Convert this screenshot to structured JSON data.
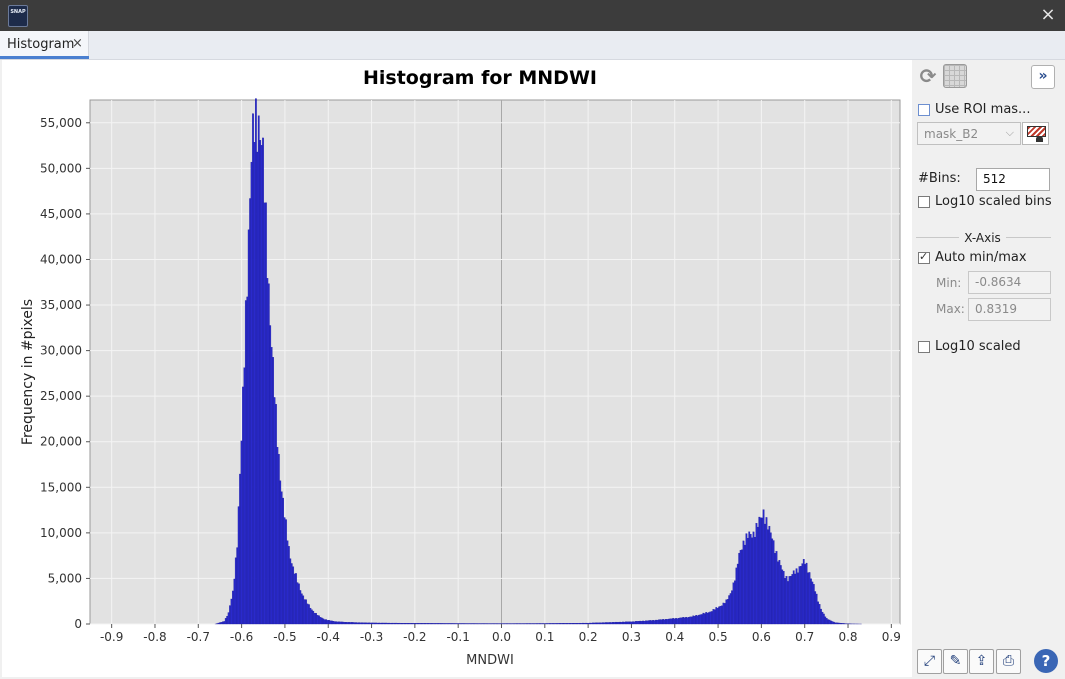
{
  "window": {
    "app_icon_text": "SNAP",
    "close_label": "×"
  },
  "tabs": [
    {
      "label": "Histogram",
      "close_label": "×",
      "active": true
    }
  ],
  "panel": {
    "use_roi_mask_label": "Use ROI mas...",
    "use_roi_mask_checked": false,
    "mask_select_value": "mask_B2",
    "bins_label": "#Bins:",
    "bins_value": "512",
    "log10_bins_label": "Log10 scaled bins",
    "log10_bins_checked": false,
    "x_axis_title": "X-Axis",
    "auto_minmax_label": "Auto min/max",
    "auto_minmax_checked": true,
    "min_label": "Min:",
    "min_value": "-0.8634",
    "max_label": "Max:",
    "max_value": "0.8319",
    "log10_scaled_label": "Log10 scaled",
    "log10_scaled_checked": false,
    "expand_label": "»",
    "help_label": "?",
    "icons": {
      "refresh": "refresh-icon",
      "grid": "grid-toggle-icon",
      "zoom_all": "zoom-all-icon",
      "edit": "edit-icon",
      "export": "export-icon",
      "print": "print-icon"
    }
  },
  "colors": {
    "bar": "#2a2acc",
    "plot_bg": "#e2e2e2",
    "accent": "#4a7fd0"
  },
  "chart_data": {
    "type": "bar",
    "title": "Histogram for MNDWI",
    "xlabel": "MNDWI",
    "ylabel": "Frequency in #pixels",
    "xlim": [
      -0.95,
      0.92
    ],
    "ylim": [
      0,
      57500
    ],
    "grid": true,
    "legend": "none",
    "xticks": [
      "-0.9",
      "-0.8",
      "-0.7",
      "-0.6",
      "-0.5",
      "-0.4",
      "-0.3",
      "-0.2",
      "-0.1",
      "0.0",
      "0.1",
      "0.2",
      "0.3",
      "0.4",
      "0.5",
      "0.6",
      "0.7",
      "0.8",
      "0.9"
    ],
    "yticks": [
      "0",
      "5,000",
      "10,000",
      "15,000",
      "20,000",
      "25,000",
      "30,000",
      "35,000",
      "40,000",
      "45,000",
      "50,000",
      "55,000"
    ],
    "profile_x": [
      -0.8634,
      -0.66,
      -0.64,
      -0.63,
      -0.62,
      -0.61,
      -0.6,
      -0.59,
      -0.58,
      -0.575,
      -0.57,
      -0.565,
      -0.56,
      -0.555,
      -0.55,
      -0.545,
      -0.54,
      -0.535,
      -0.53,
      -0.52,
      -0.51,
      -0.5,
      -0.49,
      -0.48,
      -0.47,
      -0.46,
      -0.45,
      -0.44,
      -0.43,
      -0.42,
      -0.41,
      -0.4,
      -0.38,
      -0.35,
      -0.3,
      -0.2,
      -0.1,
      0.0,
      0.1,
      0.2,
      0.3,
      0.35,
      0.4,
      0.44,
      0.48,
      0.5,
      0.52,
      0.53,
      0.54,
      0.55,
      0.56,
      0.57,
      0.58,
      0.59,
      0.6,
      0.605,
      0.61,
      0.62,
      0.63,
      0.64,
      0.65,
      0.66,
      0.67,
      0.68,
      0.69,
      0.7,
      0.71,
      0.72,
      0.73,
      0.74,
      0.75,
      0.77,
      0.8,
      0.8319
    ],
    "profile_y": [
      0,
      0,
      300,
      1200,
      3500,
      9000,
      20000,
      35000,
      47000,
      52000,
      55000,
      56000,
      55500,
      53000,
      50000,
      45000,
      40000,
      35000,
      30000,
      22000,
      16000,
      11500,
      8000,
      6000,
      4500,
      3300,
      2400,
      1700,
      1200,
      800,
      550,
      400,
      250,
      180,
      120,
      80,
      60,
      50,
      60,
      100,
      250,
      400,
      600,
      800,
      1300,
      1800,
      2500,
      3500,
      5200,
      7800,
      9200,
      9600,
      9800,
      10800,
      11500,
      12300,
      11700,
      10000,
      8600,
      7000,
      5600,
      5000,
      5300,
      5800,
      6400,
      6800,
      5800,
      4300,
      2700,
      1400,
      600,
      150,
      20,
      0
    ]
  }
}
